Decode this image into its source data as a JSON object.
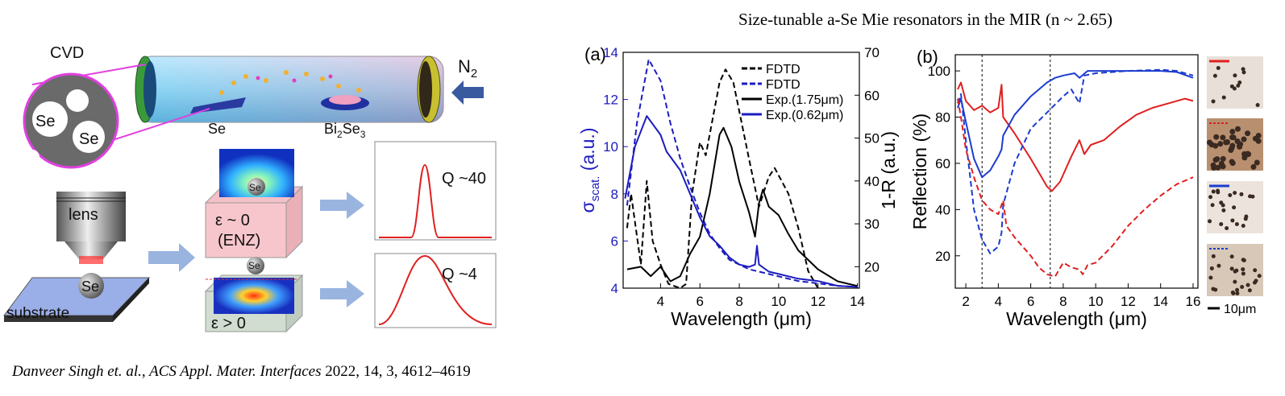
{
  "title": "Size-tunable a-Se Mie resonators in the MIR (n ~ 2.65)",
  "citation": {
    "authors_journal": "Danveer Singh et. al., ACS Appl. Mater. Interfaces",
    "details": " 2022, 14, 3, 4612–4619"
  },
  "diagram": {
    "cvd": "CVD",
    "zoom_se_1": "Se",
    "zoom_se_2": "Se",
    "gas": {
      "text": "N",
      "sub": "2"
    },
    "source_se": "Se",
    "substrate_bi2se3": {
      "parts": [
        "Bi",
        "2",
        "Se",
        "3"
      ]
    },
    "lens": "lens",
    "particle_se": "Se",
    "substrate": "substrate",
    "enz_se": "Se",
    "enz_eps": "ε ~ 0",
    "enz_label": "(ENZ)",
    "diel_se": "Se",
    "diel_eps": "ε > 0",
    "q_high": "Q ~40",
    "q_low": "Q ~4",
    "scale_bar": "10μm"
  },
  "chart_data": [
    {
      "type": "line",
      "panel": "(a)",
      "xlabel": "Wavelength (μm)",
      "ylabel": {
        "text": "σ",
        "sub": "scat.",
        "after": " (a.u.)"
      },
      "y2label": "1-R (a.u.)",
      "y_color": "#1c1cc0",
      "xlim": [
        2.1,
        14.1
      ],
      "xticks": [
        4,
        6,
        8,
        10,
        12,
        14
      ],
      "ylim": [
        4,
        14
      ],
      "yticks": [
        4,
        6,
        8,
        10,
        12,
        14
      ],
      "y2lim": [
        15,
        70
      ],
      "y2ticks": [
        20,
        30,
        40,
        50,
        60,
        70
      ],
      "series": [
        {
          "name": "FDTD",
          "color": "#000000",
          "dash": true,
          "axis": "y2",
          "x": [
            2.3,
            2.5,
            3,
            3.3,
            3.6,
            4,
            4.4,
            5,
            5.3,
            5.6,
            6,
            6.3,
            7,
            7.3,
            7.7,
            8.5,
            9,
            9.5,
            9.8,
            10.5,
            11,
            11.5,
            12
          ],
          "values": [
            29,
            37,
            20.5,
            40,
            26,
            20.5,
            16,
            15,
            16,
            37,
            49,
            46,
            63,
            66,
            63,
            45,
            34,
            41,
            43,
            37,
            29,
            19,
            15
          ]
        },
        {
          "name": "FDTD",
          "color": "#1c1cc0",
          "dash": true,
          "x": [
            2.3,
            2.8,
            3.4,
            4,
            4.5,
            5,
            5.5,
            6,
            6.5,
            7,
            7.5,
            8,
            8.5,
            9,
            10,
            11,
            12,
            13,
            14
          ],
          "values": [
            7.5,
            11,
            13.7,
            12.8,
            11,
            9.5,
            8.3,
            7.2,
            6.3,
            5.7,
            5.2,
            5,
            4.8,
            4.7,
            4.5,
            4.3,
            4.2,
            4.1,
            4.05
          ]
        },
        {
          "name": "Exp.(1.75μm)",
          "color": "#000000",
          "dash": false,
          "axis": "y2",
          "x": [
            2.3,
            3,
            3.5,
            4,
            4.5,
            5,
            5.5,
            6,
            6.5,
            7,
            7.2,
            7.6,
            8,
            8.5,
            8.8,
            9,
            9.2,
            9.5,
            10,
            10.5,
            11,
            12,
            13,
            14
          ],
          "values": [
            19.4,
            20,
            17.8,
            20,
            16.6,
            17.8,
            23,
            27,
            37,
            50.8,
            52.4,
            48,
            39.8,
            32.6,
            27,
            34.8,
            38,
            34,
            32,
            27.6,
            23.8,
            19.4,
            16.6,
            15.5
          ]
        },
        {
          "name": "Exp.(0.62μm)",
          "color": "#1c1cc0",
          "dash": false,
          "x": [
            2.2,
            2.7,
            3.3,
            4,
            4.3,
            5,
            5.5,
            6,
            6.5,
            7,
            7.5,
            8,
            8.5,
            8.8,
            8.9,
            9,
            9.5,
            10,
            11,
            12,
            13,
            14
          ],
          "values": [
            7.8,
            10,
            11.3,
            10.5,
            9.8,
            9,
            8,
            7,
            6.2,
            5.8,
            5.3,
            5,
            4.9,
            5,
            5.8,
            5,
            4.7,
            4.6,
            4.4,
            4.3,
            4.1,
            4.05
          ]
        }
      ]
    },
    {
      "type": "line",
      "panel": "(b)",
      "xlabel": "Wavelength (μm)",
      "ylabel": "Reflection (%)",
      "xlim": [
        1.35,
        16.3
      ],
      "xticks": [
        2,
        4,
        6,
        8,
        10,
        12,
        14,
        16
      ],
      "ylim": [
        6,
        107
      ],
      "yticks": [
        20,
        40,
        60,
        80,
        100
      ],
      "vlines": [
        3,
        7.2
      ],
      "series": [
        {
          "color": "#e02020",
          "dash": false,
          "x": [
            1.5,
            1.7,
            2,
            2.5,
            3,
            3.5,
            4,
            4.2,
            4.3,
            5,
            6,
            6.5,
            7,
            7.3,
            7.8,
            8.5,
            9,
            9.3,
            9.7,
            10.5,
            11.5,
            12.5,
            13.5,
            14.5,
            15.5,
            16
          ],
          "values": [
            92,
            95,
            87,
            83,
            85,
            82,
            84,
            94,
            80,
            73,
            62,
            56,
            50,
            48,
            52,
            63,
            70,
            64,
            68,
            70,
            76,
            81,
            84,
            86,
            88,
            87
          ]
        },
        {
          "color": "#1c3cd0",
          "dash": false,
          "x": [
            1.5,
            1.7,
            2,
            2.5,
            3,
            3.5,
            4,
            4.2,
            4.3,
            5,
            6,
            7,
            7.5,
            8,
            8.7,
            9,
            9.5,
            10,
            12,
            14,
            15,
            16
          ],
          "values": [
            84,
            88,
            78,
            62,
            54,
            57,
            63,
            66,
            72,
            81,
            89,
            95,
            97,
            98,
            99,
            97,
            100,
            100,
            100,
            100,
            99.5,
            97
          ]
        },
        {
          "color": "#1c3cd0",
          "dash": true,
          "x": [
            1.5,
            1.7,
            2,
            2.5,
            3,
            3.5,
            4,
            4.2,
            4.3,
            5,
            6,
            7,
            8,
            8.5,
            9,
            9.3,
            10,
            12,
            14,
            15,
            16
          ],
          "values": [
            86,
            90,
            70,
            40,
            27,
            21,
            24,
            30,
            42,
            60,
            75,
            82,
            89,
            92,
            86,
            98,
            99,
            100,
            100.5,
            100,
            98
          ]
        },
        {
          "color": "#e02020",
          "dash": true,
          "x": [
            1.5,
            1.7,
            2,
            2.5,
            3,
            3.5,
            4,
            4.3,
            4.5,
            5,
            6,
            6.5,
            7,
            7.5,
            8,
            8.5,
            9,
            9.2,
            9.5,
            10,
            11,
            12,
            13,
            14,
            15,
            16
          ],
          "values": [
            88,
            80,
            66,
            54,
            44,
            40,
            38,
            44,
            33,
            28,
            20,
            15,
            12,
            11,
            17,
            15,
            14,
            12,
            16,
            17,
            24,
            33,
            40,
            46,
            51,
            54
          ]
        }
      ]
    }
  ]
}
